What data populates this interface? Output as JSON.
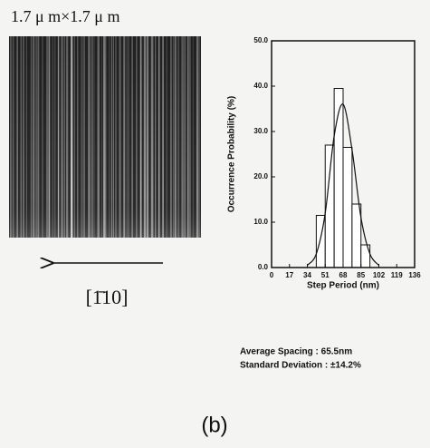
{
  "image_caption": "1.7 μ m×1.7 μ m",
  "direction_label": "[1̄10]",
  "chart_data": {
    "type": "histogram",
    "xlabel": "Step Period (nm)",
    "ylabel": "Occurrence Probability (%)",
    "bins": [
      42.5,
      51,
      59.5,
      68,
      76.5,
      85,
      93.5
    ],
    "values": [
      11.5,
      27,
      39.5,
      26.5,
      14,
      5
    ],
    "color": "#ffffff",
    "fit": {
      "x": [
        34,
        42.5,
        51,
        59.5,
        68,
        76.5,
        85,
        93.5,
        102
      ],
      "values": [
        0.5,
        3,
        12,
        29,
        36,
        26,
        11,
        3,
        0.5
      ]
    },
    "xlim": [
      0,
      136
    ],
    "xticks": [
      0,
      17,
      34,
      51,
      68,
      85,
      102,
      119,
      136
    ],
    "ylim": [
      0,
      50
    ],
    "yticks": [
      {
        "value": 0,
        "label": "0.0"
      },
      {
        "value": 10,
        "label": "10.0"
      },
      {
        "value": 20,
        "label": "20.0"
      },
      {
        "value": 30,
        "label": "30.0"
      },
      {
        "value": 40,
        "label": "40.0"
      },
      {
        "value": 50,
        "label": "50.0"
      }
    ],
    "grid": false
  },
  "annotations": [
    "Average Spacing : 65.5nm",
    "Standard Deviation : ±14.2%"
  ],
  "panel_label": "(b)"
}
